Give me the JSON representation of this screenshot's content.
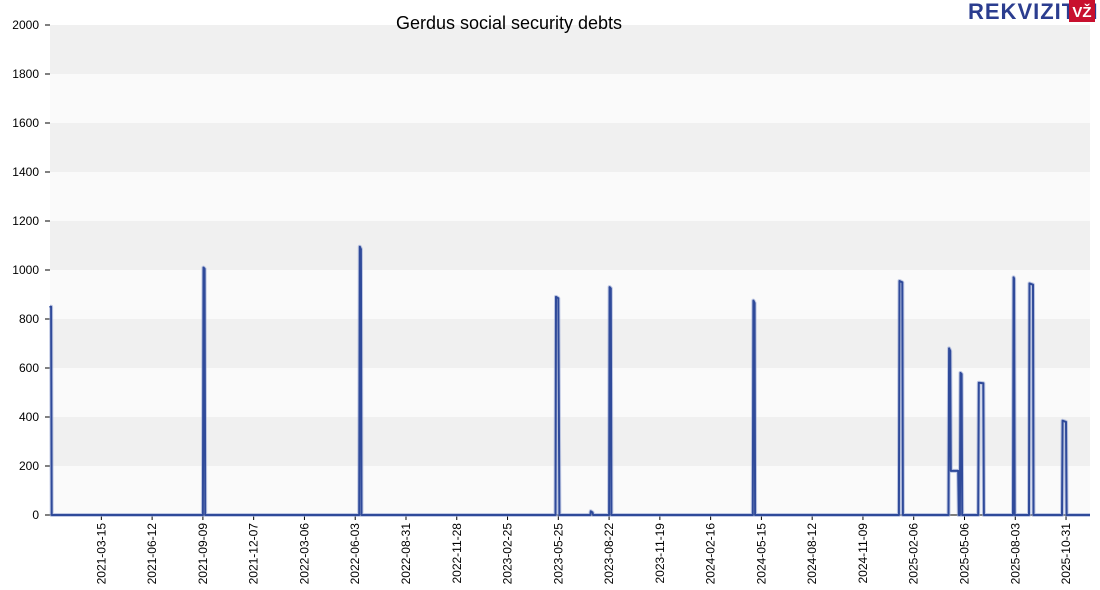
{
  "logo": {
    "brand": "REKVIZITAI",
    "badge": "VŽ"
  },
  "colors": {
    "line": "#2f4a9a",
    "band_dark": "#f0f0f0",
    "band_light": "#fafafa",
    "logo_red": "#c8102e",
    "logo_blue": "#2b3d8f"
  },
  "chart_data": {
    "type": "line",
    "title": "Gerdus social security debts",
    "xlabel": "",
    "ylabel": "",
    "ylim": [
      0,
      2000
    ],
    "yticks": [
      0,
      200,
      400,
      600,
      800,
      1000,
      1200,
      1400,
      1600,
      1800,
      2000
    ],
    "xlim": [
      "2020-12-15",
      "2025-12-12"
    ],
    "xticks": [
      "2021-03-15",
      "2021-06-12",
      "2021-09-09",
      "2021-12-07",
      "2022-03-06",
      "2022-06-03",
      "2022-08-31",
      "2022-11-28",
      "2023-02-25",
      "2023-05-25",
      "2023-08-22",
      "2023-11-19",
      "2024-02-16",
      "2024-05-15",
      "2024-08-12",
      "2024-11-09",
      "2025-02-06",
      "2025-05-06",
      "2025-08-03",
      "2025-10-31"
    ],
    "grid": "horizontal bands",
    "series": [
      {
        "points": [
          [
            "2020-12-15",
            850
          ],
          [
            "2020-12-17",
            850
          ],
          [
            "2020-12-18",
            0
          ],
          [
            "2021-09-09",
            0
          ],
          [
            "2021-09-10",
            1010
          ],
          [
            "2021-09-12",
            1005
          ],
          [
            "2021-09-13",
            0
          ],
          [
            "2022-06-10",
            0
          ],
          [
            "2022-06-11",
            1095
          ],
          [
            "2022-06-13",
            1085
          ],
          [
            "2022-06-14",
            0
          ],
          [
            "2023-05-20",
            0
          ],
          [
            "2023-05-21",
            890
          ],
          [
            "2023-05-25",
            885
          ],
          [
            "2023-05-27",
            0
          ],
          [
            "2023-07-20",
            0
          ],
          [
            "2023-07-21",
            15
          ],
          [
            "2023-07-24",
            10
          ],
          [
            "2023-07-25",
            0
          ],
          [
            "2023-08-22",
            0
          ],
          [
            "2023-08-23",
            930
          ],
          [
            "2023-08-25",
            925
          ],
          [
            "2023-08-26",
            0
          ],
          [
            "2024-04-30",
            0
          ],
          [
            "2024-05-01",
            875
          ],
          [
            "2024-05-03",
            865
          ],
          [
            "2024-05-04",
            0
          ],
          [
            "2025-01-11",
            0
          ],
          [
            "2025-01-12",
            955
          ],
          [
            "2025-01-17",
            950
          ],
          [
            "2025-01-18",
            0
          ],
          [
            "2025-04-08",
            0
          ],
          [
            "2025-04-09",
            680
          ],
          [
            "2025-04-11",
            670
          ],
          [
            "2025-04-12",
            180
          ],
          [
            "2025-04-25",
            180
          ],
          [
            "2025-04-26",
            0
          ],
          [
            "2025-04-28",
            0
          ],
          [
            "2025-04-29",
            580
          ],
          [
            "2025-05-01",
            575
          ],
          [
            "2025-05-02",
            0
          ],
          [
            "2025-05-30",
            0
          ],
          [
            "2025-05-31",
            540
          ],
          [
            "2025-06-08",
            538
          ],
          [
            "2025-06-09",
            0
          ],
          [
            "2025-07-30",
            0
          ],
          [
            "2025-07-31",
            970
          ],
          [
            "2025-08-01",
            965
          ],
          [
            "2025-08-02",
            0
          ],
          [
            "2025-08-27",
            0
          ],
          [
            "2025-08-28",
            945
          ],
          [
            "2025-09-03",
            940
          ],
          [
            "2025-09-04",
            0
          ],
          [
            "2025-10-24",
            0
          ],
          [
            "2025-10-25",
            385
          ],
          [
            "2025-10-31",
            380
          ],
          [
            "2025-11-01",
            0
          ],
          [
            "2025-12-12",
            0
          ]
        ]
      }
    ]
  }
}
